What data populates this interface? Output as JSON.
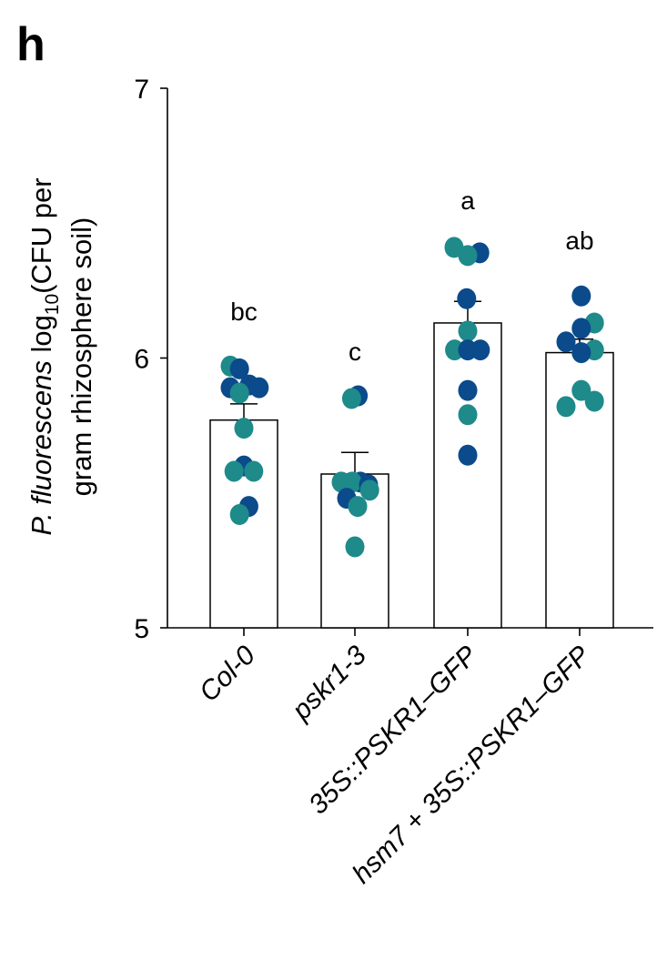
{
  "panel_label": "h",
  "chart_data": {
    "type": "bar",
    "ylabel_parts": [
      "P. fluorescens",
      " log",
      "10",
      "(CFU per",
      "gram rhizosphere soil)"
    ],
    "ylim": [
      5,
      7
    ],
    "yticks": [
      5,
      6,
      7
    ],
    "categories": [
      {
        "parts": [
          "Col-0"
        ]
      },
      {
        "parts": [
          "pskr1-3"
        ]
      },
      {
        "parts": [
          "35S::PSKR1–GFP"
        ]
      },
      {
        "parts": [
          "hsm7",
          " + ",
          "35S::PSKR1–GFP"
        ]
      }
    ],
    "values": [
      5.77,
      5.57,
      6.13,
      6.02
    ],
    "sem": [
      0.06,
      0.08,
      0.08,
      0.05
    ],
    "significance": [
      "bc",
      "c",
      "a",
      "ab"
    ],
    "colors": {
      "series_dark": "#0b4a8b",
      "series_teal": "#1e8a8a"
    },
    "points": [
      [
        {
          "y": 5.97,
          "c": "teal",
          "dx": -0.25
        },
        {
          "y": 5.96,
          "c": "dark",
          "dx": -0.08
        },
        {
          "y": 5.89,
          "c": "dark",
          "dx": -0.25
        },
        {
          "y": 5.9,
          "c": "dark",
          "dx": 0.1
        },
        {
          "y": 5.89,
          "c": "dark",
          "dx": 0.28
        },
        {
          "y": 5.87,
          "c": "teal",
          "dx": -0.08
        },
        {
          "y": 5.74,
          "c": "teal",
          "dx": 0.0
        },
        {
          "y": 5.6,
          "c": "dark",
          "dx": 0.0
        },
        {
          "y": 5.58,
          "c": "teal",
          "dx": -0.18
        },
        {
          "y": 5.58,
          "c": "teal",
          "dx": 0.18
        },
        {
          "y": 5.45,
          "c": "dark",
          "dx": 0.09
        },
        {
          "y": 5.42,
          "c": "teal",
          "dx": -0.08
        }
      ],
      [
        {
          "y": 5.86,
          "c": "dark",
          "dx": 0.06
        },
        {
          "y": 5.85,
          "c": "teal",
          "dx": -0.06
        },
        {
          "y": 5.54,
          "c": "teal",
          "dx": -0.25
        },
        {
          "y": 5.54,
          "c": "dark",
          "dx": 0.1
        },
        {
          "y": 5.54,
          "c": "teal",
          "dx": -0.05
        },
        {
          "y": 5.53,
          "c": "dark",
          "dx": 0.25
        },
        {
          "y": 5.51,
          "c": "teal",
          "dx": 0.27
        },
        {
          "y": 5.48,
          "c": "dark",
          "dx": -0.15
        },
        {
          "y": 5.45,
          "c": "teal",
          "dx": 0.05
        },
        {
          "y": 5.3,
          "c": "teal",
          "dx": 0.0
        }
      ],
      [
        {
          "y": 6.41,
          "c": "teal",
          "dx": -0.25
        },
        {
          "y": 6.39,
          "c": "dark",
          "dx": 0.22
        },
        {
          "y": 6.38,
          "c": "teal",
          "dx": 0.0
        },
        {
          "y": 6.22,
          "c": "dark",
          "dx": -0.02
        },
        {
          "y": 6.1,
          "c": "teal",
          "dx": 0.0
        },
        {
          "y": 6.03,
          "c": "teal",
          "dx": -0.24
        },
        {
          "y": 6.03,
          "c": "dark",
          "dx": 0.0
        },
        {
          "y": 6.03,
          "c": "dark",
          "dx": 0.23
        },
        {
          "y": 5.88,
          "c": "dark",
          "dx": 0.0
        },
        {
          "y": 5.79,
          "c": "teal",
          "dx": 0.0
        },
        {
          "y": 5.64,
          "c": "dark",
          "dx": 0.0
        }
      ],
      [
        {
          "y": 6.23,
          "c": "dark",
          "dx": 0.03
        },
        {
          "y": 6.13,
          "c": "teal",
          "dx": 0.27
        },
        {
          "y": 6.11,
          "c": "dark",
          "dx": 0.03
        },
        {
          "y": 6.06,
          "c": "dark",
          "dx": -0.25
        },
        {
          "y": 6.03,
          "c": "teal",
          "dx": 0.27
        },
        {
          "y": 6.02,
          "c": "dark",
          "dx": 0.03
        },
        {
          "y": 5.88,
          "c": "teal",
          "dx": 0.03
        },
        {
          "y": 5.84,
          "c": "teal",
          "dx": 0.27
        },
        {
          "y": 5.82,
          "c": "teal",
          "dx": -0.25
        }
      ]
    ]
  }
}
